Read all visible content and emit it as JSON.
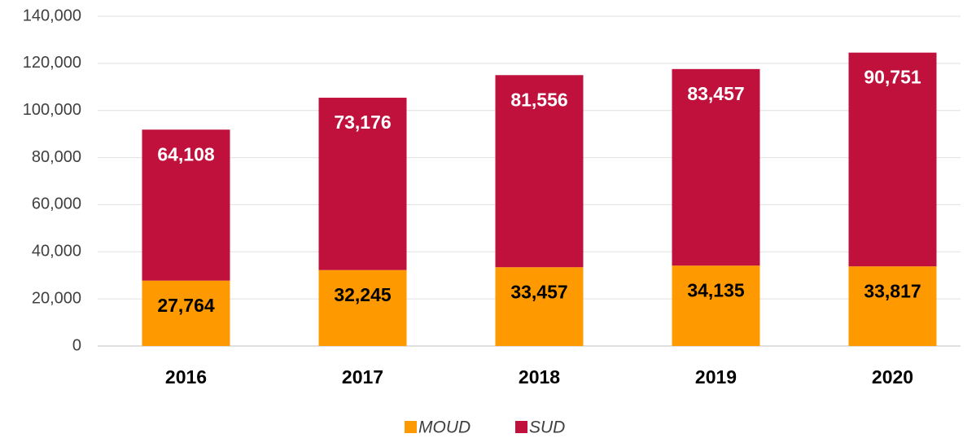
{
  "chart_data": {
    "type": "stacked_bar",
    "categories": [
      "2016",
      "2017",
      "2018",
      "2019",
      "2020"
    ],
    "series": [
      {
        "name": "MOUD",
        "color": "#ff9900",
        "values": [
          27764,
          32245,
          33457,
          34135,
          33817
        ],
        "value_labels": [
          "27,764",
          "32,245",
          "33,457",
          "34,135",
          "33,817"
        ],
        "label_color": "#000000"
      },
      {
        "name": "SUD",
        "color": "#c0113c",
        "values": [
          64108,
          73176,
          81556,
          83457,
          90751
        ],
        "value_labels": [
          "64,108",
          "73,176",
          "81,556",
          "83,457",
          "90,751"
        ],
        "label_color": "#ffffff"
      }
    ],
    "ylim": [
      0,
      140000
    ],
    "yticks": [
      0,
      {
        "value": 20000,
        "label": "20,000"
      },
      {
        "value": 40000,
        "label": "40,000"
      },
      {
        "value": 60000,
        "label": "60,000"
      },
      {
        "value": 80000,
        "label": "80,000"
      },
      {
        "value": 100000,
        "label": "100,000"
      },
      {
        "value": 120000,
        "label": "120,000"
      },
      {
        "value": 140000,
        "label": "140,000"
      }
    ],
    "grid": true,
    "legend": "bottom"
  }
}
